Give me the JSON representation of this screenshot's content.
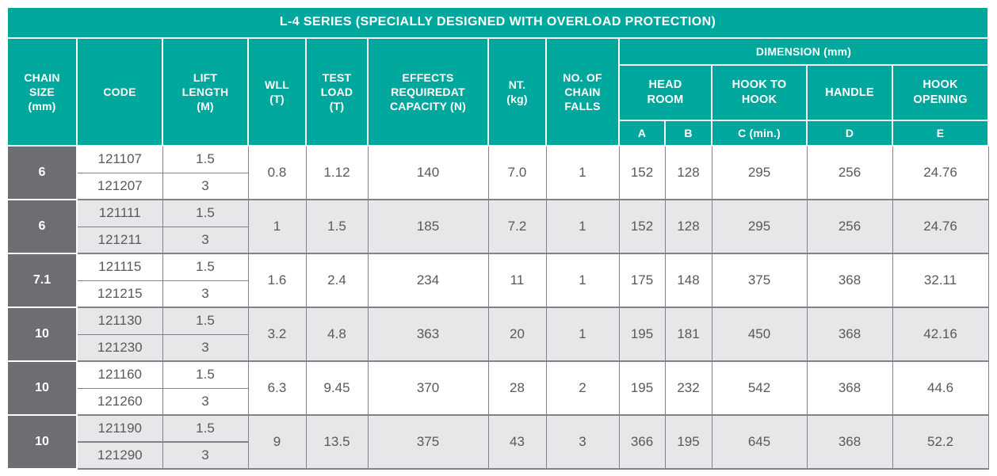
{
  "colors": {
    "header_teal": "#00a79c",
    "chain_cell_gray": "#6d6e71",
    "row_alt_gray": "#e6e7e8",
    "row_white": "#ffffff",
    "grid_border": "#808285",
    "data_text": "#58595b",
    "header_text": "#ffffff"
  },
  "table": {
    "title": "L-4 SERIES (SPECIALLY DESIGNED WITH OVERLOAD PROTECTION)",
    "headers": {
      "chain_size": "CHAIN\nSIZE\n(mm)",
      "code": "CODE",
      "lift_length": "LIFT\nLENGTH\n(M)",
      "wll": "WLL\n(T)",
      "test_load": "TEST\nLOAD\n(T)",
      "effects": "EFFECTS\nREQUIREDAT\nCAPACITY (N)",
      "nt": "NT.\n(kg)",
      "chain_falls": "NO. OF\nCHAIN\nFALLS",
      "dimension": "DIMENSION (mm)",
      "head_room": "HEAD\nROOM",
      "hook_to_hook": "HOOK TO\nHOOK",
      "handle": "HANDLE",
      "hook_opening": "HOOK\nOPENING",
      "sub_a": "A",
      "sub_b": "B",
      "sub_c": "C (min.)",
      "sub_d": "D",
      "sub_e": "E"
    },
    "groups": [
      {
        "chain_size": "6",
        "rows": [
          {
            "code": "121107",
            "lift_length": "1.5"
          },
          {
            "code": "121207",
            "lift_length": "3"
          }
        ],
        "wll": "0.8",
        "test_load": "1.12",
        "effects": "140",
        "nt": "7.0",
        "chain_falls": "1",
        "a": "152",
        "b": "128",
        "c": "295",
        "d": "256",
        "e": "24.76"
      },
      {
        "chain_size": "6",
        "rows": [
          {
            "code": "121111",
            "lift_length": "1.5"
          },
          {
            "code": "121211",
            "lift_length": "3"
          }
        ],
        "wll": "1",
        "test_load": "1.5",
        "effects": "185",
        "nt": "7.2",
        "chain_falls": "1",
        "a": "152",
        "b": "128",
        "c": "295",
        "d": "256",
        "e": "24.76"
      },
      {
        "chain_size": "7.1",
        "rows": [
          {
            "code": "121115",
            "lift_length": "1.5"
          },
          {
            "code": "121215",
            "lift_length": "3"
          }
        ],
        "wll": "1.6",
        "test_load": "2.4",
        "effects": "234",
        "nt": "11",
        "chain_falls": "1",
        "a": "175",
        "b": "148",
        "c": "375",
        "d": "368",
        "e": "32.11"
      },
      {
        "chain_size": "10",
        "rows": [
          {
            "code": "121130",
            "lift_length": "1.5"
          },
          {
            "code": "121230",
            "lift_length": "3"
          }
        ],
        "wll": "3.2",
        "test_load": "4.8",
        "effects": "363",
        "nt": "20",
        "chain_falls": "1",
        "a": "195",
        "b": "181",
        "c": "450",
        "d": "368",
        "e": "42.16"
      },
      {
        "chain_size": "10",
        "rows": [
          {
            "code": "121160",
            "lift_length": "1.5"
          },
          {
            "code": "121260",
            "lift_length": "3"
          }
        ],
        "wll": "6.3",
        "test_load": "9.45",
        "effects": "370",
        "nt": "28",
        "chain_falls": "2",
        "a": "195",
        "b": "232",
        "c": "542",
        "d": "368",
        "e": "44.6"
      },
      {
        "chain_size": "10",
        "rows": [
          {
            "code": "121190",
            "lift_length": "1.5"
          },
          {
            "code": "121290",
            "lift_length": "3"
          }
        ],
        "wll": "9",
        "test_load": "13.5",
        "effects": "375",
        "nt": "43",
        "chain_falls": "3",
        "a": "366",
        "b": "195",
        "c": "645",
        "d": "368",
        "e": "52.2"
      }
    ]
  }
}
